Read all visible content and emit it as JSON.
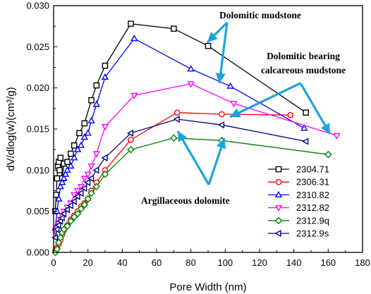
{
  "chart_data": {
    "type": "scatter",
    "xlabel": "Pore Width (nm)",
    "ylabel": "dV/dlog(w)(cm³/g)",
    "xlim": [
      0,
      180
    ],
    "ylim": [
      0,
      0.03
    ],
    "xticks": [
      "0",
      "20",
      "40",
      "60",
      "80",
      "100",
      "120",
      "140",
      "160",
      "180"
    ],
    "yticks": [
      "0.000",
      "0.005",
      "0.010",
      "0.015",
      "0.020",
      "0.025",
      "0.030"
    ],
    "grid": false,
    "legend_placement": "bottom-right",
    "series": [
      {
        "name": "2304.71",
        "color": "#000000",
        "marker": "square",
        "points": [
          [
            1,
            0.005
          ],
          [
            1.5,
            0.007
          ],
          [
            2,
            0.009
          ],
          [
            2.5,
            0.0105
          ],
          [
            3,
            0.011
          ],
          [
            3.5,
            0.01
          ],
          [
            4,
            0.0115
          ],
          [
            5,
            0.009
          ],
          [
            6,
            0.0108
          ],
          [
            8,
            0.011
          ],
          [
            10,
            0.012
          ],
          [
            12,
            0.013
          ],
          [
            15,
            0.0145
          ],
          [
            18,
            0.0157
          ],
          [
            22,
            0.0185
          ],
          [
            25,
            0.0203
          ],
          [
            30,
            0.0227
          ],
          [
            45,
            0.0278
          ],
          [
            70,
            0.0272
          ],
          [
            90,
            0.0251
          ],
          [
            147,
            0.017
          ]
        ]
      },
      {
        "name": "2306.31",
        "color": "#ff0000",
        "marker": "circle",
        "points": [
          [
            1,
            0.0002
          ],
          [
            2,
            0.0006
          ],
          [
            3,
            0.001
          ],
          [
            4,
            0.0015
          ],
          [
            5,
            0.0022
          ],
          [
            6,
            0.0027
          ],
          [
            8,
            0.0033
          ],
          [
            10,
            0.004
          ],
          [
            12,
            0.0045
          ],
          [
            14,
            0.005
          ],
          [
            16,
            0.0056
          ],
          [
            18,
            0.006
          ],
          [
            20,
            0.0065
          ],
          [
            22,
            0.0075
          ],
          [
            25,
            0.0085
          ],
          [
            30,
            0.01
          ],
          [
            45,
            0.0137
          ],
          [
            72,
            0.017
          ],
          [
            98,
            0.0168
          ],
          [
            138,
            0.0167
          ]
        ]
      },
      {
        "name": "2310.82",
        "color": "#0000ff",
        "marker": "triangle-up",
        "points": [
          [
            1,
            0.003
          ],
          [
            2,
            0.005
          ],
          [
            3,
            0.0065
          ],
          [
            4,
            0.008
          ],
          [
            5,
            0.0085
          ],
          [
            6,
            0.009
          ],
          [
            7,
            0.0095
          ],
          [
            8,
            0.01
          ],
          [
            10,
            0.0105
          ],
          [
            12,
            0.0115
          ],
          [
            14,
            0.0125
          ],
          [
            16,
            0.013
          ],
          [
            18,
            0.014
          ],
          [
            20,
            0.0145
          ],
          [
            22,
            0.016
          ],
          [
            25,
            0.018
          ],
          [
            30,
            0.0213
          ],
          [
            47,
            0.026
          ],
          [
            80,
            0.0223
          ],
          [
            103,
            0.0202
          ],
          [
            146,
            0.0151
          ]
        ]
      },
      {
        "name": "2312.82",
        "color": "#ff00ff",
        "marker": "triangle-down",
        "points": [
          [
            1,
            0.0025
          ],
          [
            2,
            0.003
          ],
          [
            3,
            0.0035
          ],
          [
            4,
            0.004
          ],
          [
            5,
            0.0045
          ],
          [
            6,
            0.005
          ],
          [
            8,
            0.0055
          ],
          [
            10,
            0.006
          ],
          [
            12,
            0.007
          ],
          [
            14,
            0.0075
          ],
          [
            16,
            0.008
          ],
          [
            18,
            0.009
          ],
          [
            20,
            0.0095
          ],
          [
            22,
            0.0105
          ],
          [
            25,
            0.012
          ],
          [
            30,
            0.0153
          ],
          [
            47,
            0.0191
          ],
          [
            80,
            0.0205
          ],
          [
            105,
            0.0181
          ],
          [
            165,
            0.0142
          ]
        ]
      },
      {
        "name": "2312.9q",
        "color": "#008000",
        "marker": "diamond",
        "points": [
          [
            1,
            0.0
          ],
          [
            2,
            0.0004
          ],
          [
            3,
            0.0012
          ],
          [
            4,
            0.0018
          ],
          [
            5,
            0.0024
          ],
          [
            6,
            0.0028
          ],
          [
            8,
            0.0032
          ],
          [
            10,
            0.0038
          ],
          [
            12,
            0.0043
          ],
          [
            14,
            0.0047
          ],
          [
            16,
            0.0053
          ],
          [
            18,
            0.0058
          ],
          [
            20,
            0.0065
          ],
          [
            22,
            0.0072
          ],
          [
            25,
            0.008
          ],
          [
            30,
            0.0095
          ],
          [
            45,
            0.0125
          ],
          [
            70,
            0.0139
          ],
          [
            98,
            0.0136
          ],
          [
            160,
            0.0119
          ]
        ]
      },
      {
        "name": "2312.9s",
        "color": "#000080",
        "marker": "triangle-left",
        "points": [
          [
            1,
            0.0018
          ],
          [
            2,
            0.0028
          ],
          [
            3,
            0.0033
          ],
          [
            4,
            0.0038
          ],
          [
            5,
            0.0042
          ],
          [
            6,
            0.0047
          ],
          [
            8,
            0.0052
          ],
          [
            10,
            0.0057
          ],
          [
            12,
            0.0062
          ],
          [
            14,
            0.0068
          ],
          [
            16,
            0.0072
          ],
          [
            18,
            0.0078
          ],
          [
            20,
            0.0085
          ],
          [
            22,
            0.009
          ],
          [
            25,
            0.01
          ],
          [
            30,
            0.0115
          ],
          [
            45,
            0.0145
          ],
          [
            72,
            0.0162
          ],
          [
            98,
            0.0155
          ],
          [
            147,
            0.0135
          ]
        ]
      }
    ],
    "annotations": [
      {
        "text": "Dolomitic mudstone",
        "lines": [
          "Dolomitic mudstone"
        ]
      },
      {
        "text": "Dolomitic bearing calcareous mudstone",
        "lines": [
          "Dolomitic bearing",
          "calcareous mudstone"
        ]
      },
      {
        "text": "Argillaceous dolomite",
        "lines": [
          "Argillaceous dolomite"
        ]
      }
    ]
  }
}
